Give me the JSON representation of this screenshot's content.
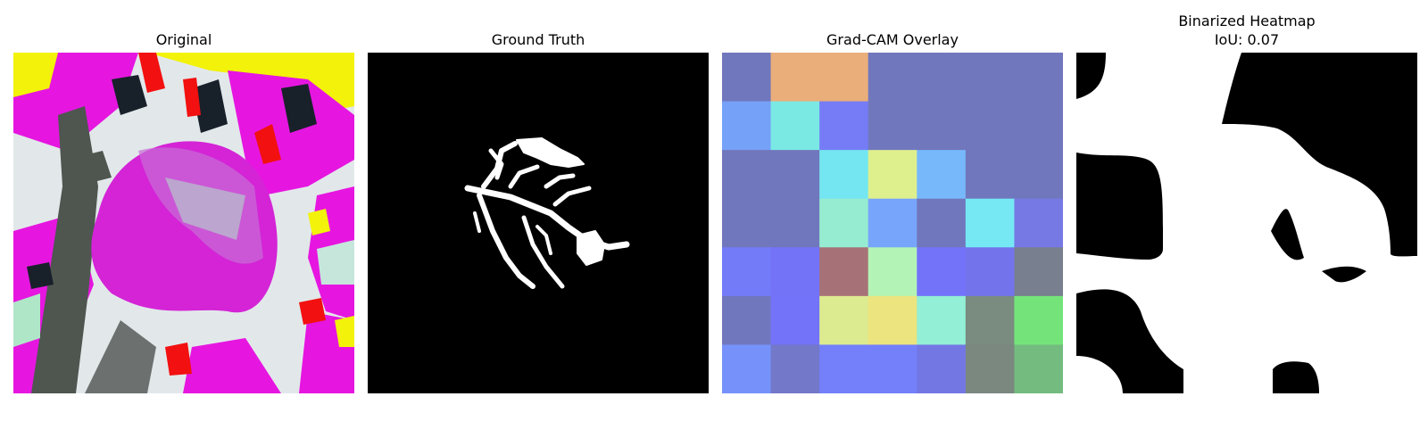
{
  "panels": [
    {
      "title": "Original"
    },
    {
      "title": "Ground Truth"
    },
    {
      "title": "Grad-CAM Overlay"
    },
    {
      "title": "Binarized Heatmap",
      "subtitle": "IoU: 0.07"
    }
  ],
  "icons": [
    "leaf-photo",
    "mask",
    "heatmap-overlay",
    "binary-heatmap"
  ],
  "gradcam": {
    "rows": 7,
    "cols": 7,
    "colors": [
      [
        "#7177bd",
        "#eaae7a",
        "#eaae7a",
        "#7177bd",
        "#7177bd",
        "#7177bd",
        "#7177bd"
      ],
      [
        "#76a1f8",
        "#7ae9e4",
        "#757cf5",
        "#7177bd",
        "#7177bd",
        "#7177bd",
        "#7177bd"
      ],
      [
        "#7177bd",
        "#7177bd",
        "#74e6f1",
        "#deef8d",
        "#77b8fb",
        "#7177bd",
        "#7177bd"
      ],
      [
        "#7177bd",
        "#7177bd",
        "#96ecd0",
        "#76a5fb",
        "#7177bd",
        "#75e8f4",
        "#7679e4"
      ],
      [
        "#747bf8",
        "#7373f8",
        "#a77277",
        "#b3f4b6",
        "#7373fa",
        "#7373ec",
        "#787f8e"
      ],
      [
        "#7177bd",
        "#7373fa",
        "#dceb90",
        "#ece47f",
        "#93efd5",
        "#7a8b80",
        "#74e47a"
      ],
      [
        "#7692fa",
        "#7378c9",
        "#7380fa",
        "#7380fa",
        "#7377e4",
        "#7a8880",
        "#74bb7f"
      ]
    ]
  }
}
